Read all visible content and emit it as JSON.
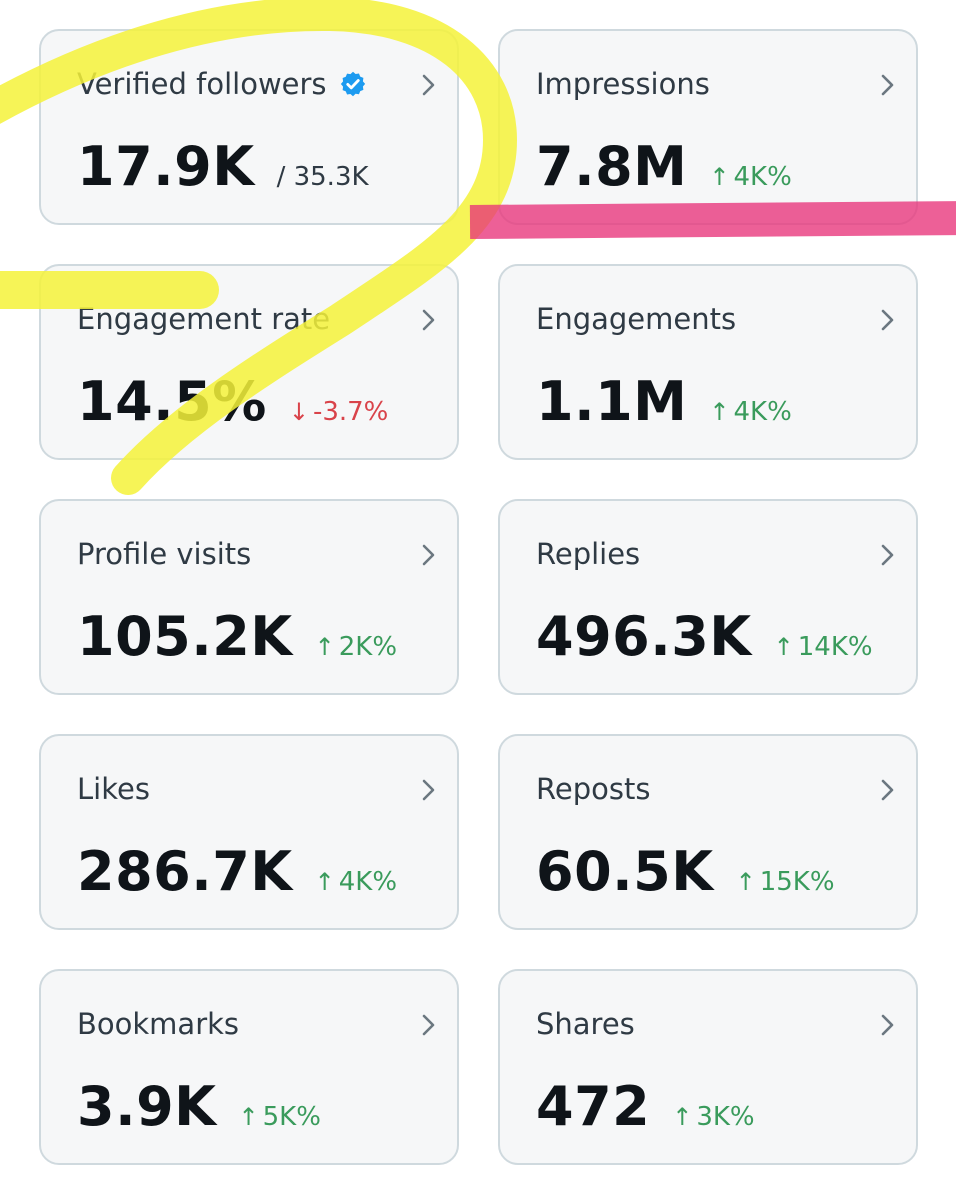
{
  "cards": [
    {
      "title": "Verified followers",
      "value": "17.9K",
      "sub": "/ 35.3K",
      "verified": true
    },
    {
      "title": "Impressions",
      "value": "7.8M",
      "delta": "4K%",
      "direction": "up"
    },
    {
      "title": "Engagement rate",
      "value": "14.5%",
      "delta": "-3.7%",
      "direction": "down"
    },
    {
      "title": "Engagements",
      "value": "1.1M",
      "delta": "4K%",
      "direction": "up"
    },
    {
      "title": "Profile visits",
      "value": "105.2K",
      "delta": "2K%",
      "direction": "up"
    },
    {
      "title": "Replies",
      "value": "496.3K",
      "delta": "14K%",
      "direction": "up"
    },
    {
      "title": "Likes",
      "value": "286.7K",
      "delta": "4K%",
      "direction": "up"
    },
    {
      "title": "Reposts",
      "value": "60.5K",
      "delta": "15K%",
      "direction": "up"
    },
    {
      "title": "Bookmarks",
      "value": "3.9K",
      "delta": "5K%",
      "direction": "up"
    },
    {
      "title": "Shares",
      "value": "472",
      "delta": "3K%",
      "direction": "up"
    }
  ],
  "colors": {
    "up": "#3a9b5c",
    "down": "#d9434a",
    "verified": "#1d9bf0",
    "highlight_yellow": "#f5f23a",
    "highlight_pink": "#e8337a"
  },
  "icons": {
    "chevron": "chevron-right-icon",
    "verified": "verified-badge-icon",
    "up": "arrow-up-icon",
    "down": "arrow-down-icon"
  }
}
